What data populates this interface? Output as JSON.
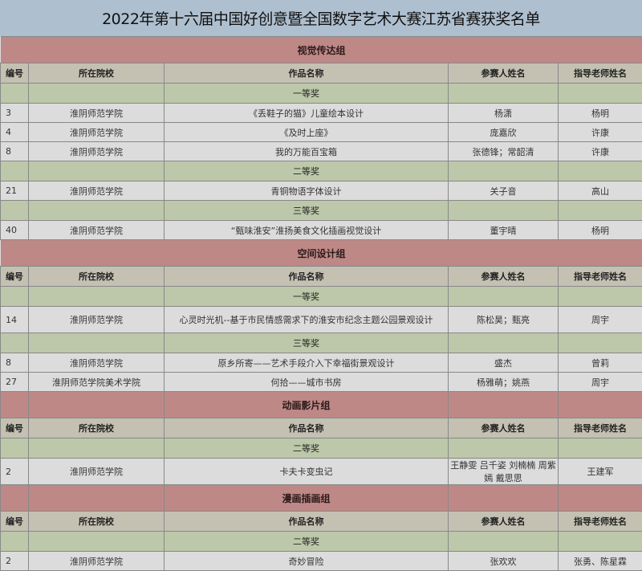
{
  "title": "2022年第十六届中国好创意暨全国数字艺术大赛江苏省赛获奖名单",
  "headers": [
    "编号",
    "所在院校",
    "作品名称",
    "参赛人姓名",
    "指导老师姓名"
  ],
  "colors": {
    "title_bg": "#aebfcf",
    "section_bg": "#be8886",
    "header_bg": "#c4c1b3",
    "award_bg": "#bcc8a9",
    "row_bg": "#dcdcdc"
  },
  "sections": [
    {
      "name": "视觉传达组",
      "awards": [
        {
          "level": "一等奖",
          "rows": [
            [
              "3",
              "淮阴师范学院",
              "《丢鞋子的猫》儿童绘本设计",
              "杨潇",
              "杨明"
            ],
            [
              "4",
              "淮阴师范学院",
              "《及时上座》",
              "庞嘉欣",
              "许康"
            ],
            [
              "8",
              "淮阴师范学院",
              "我的万能百宝箱",
              "张德锋；常韶清",
              "许康"
            ]
          ]
        },
        {
          "level": "二等奖",
          "rows": [
            [
              "21",
              "淮阴师范学院",
              "青铜物语字体设计",
              "关子音",
              "高山"
            ]
          ]
        },
        {
          "level": "三等奖",
          "rows": [
            [
              "40",
              "淮阴师范学院",
              "“甄味淮安”淮扬美食文化插画视觉设计",
              "董宇晴",
              "杨明"
            ]
          ]
        }
      ]
    },
    {
      "name": "空间设计组",
      "awards": [
        {
          "level": "一等奖",
          "rows": [
            [
              "14",
              "淮阴师范学院",
              "心灵时光机--基于市民情感需求下的淮安市纪念主题公园景观设计",
              "陈松昊；甄亮",
              "周宇"
            ]
          ]
        },
        {
          "level": "三等奖",
          "rows": [
            [
              "8",
              "淮阴师范学院",
              "原乡所寄——艺术手段介入下幸福街景观设计",
              "盛杰",
              "曾莉"
            ],
            [
              "27",
              "淮阴师范学院美术学院",
              "何拾——城市书房",
              "杨雅萌；姚燕",
              "周宇"
            ]
          ]
        }
      ]
    },
    {
      "name": "动画影片组",
      "awards": [
        {
          "level": "二等奖",
          "rows": [
            [
              "2",
              "淮阴师范学院",
              "卡夫卡变虫记",
              "王静雯 吕千姿 刘楠楠 周紫嫣 戴思思",
              "王建军"
            ]
          ]
        }
      ]
    },
    {
      "name": "漫画插画组",
      "awards": [
        {
          "level": "二等奖",
          "rows": [
            [
              "2",
              "淮阴师范学院",
              "奇妙冒险",
              "张欢欢",
              "张勇、陈星霖"
            ]
          ]
        }
      ]
    }
  ]
}
